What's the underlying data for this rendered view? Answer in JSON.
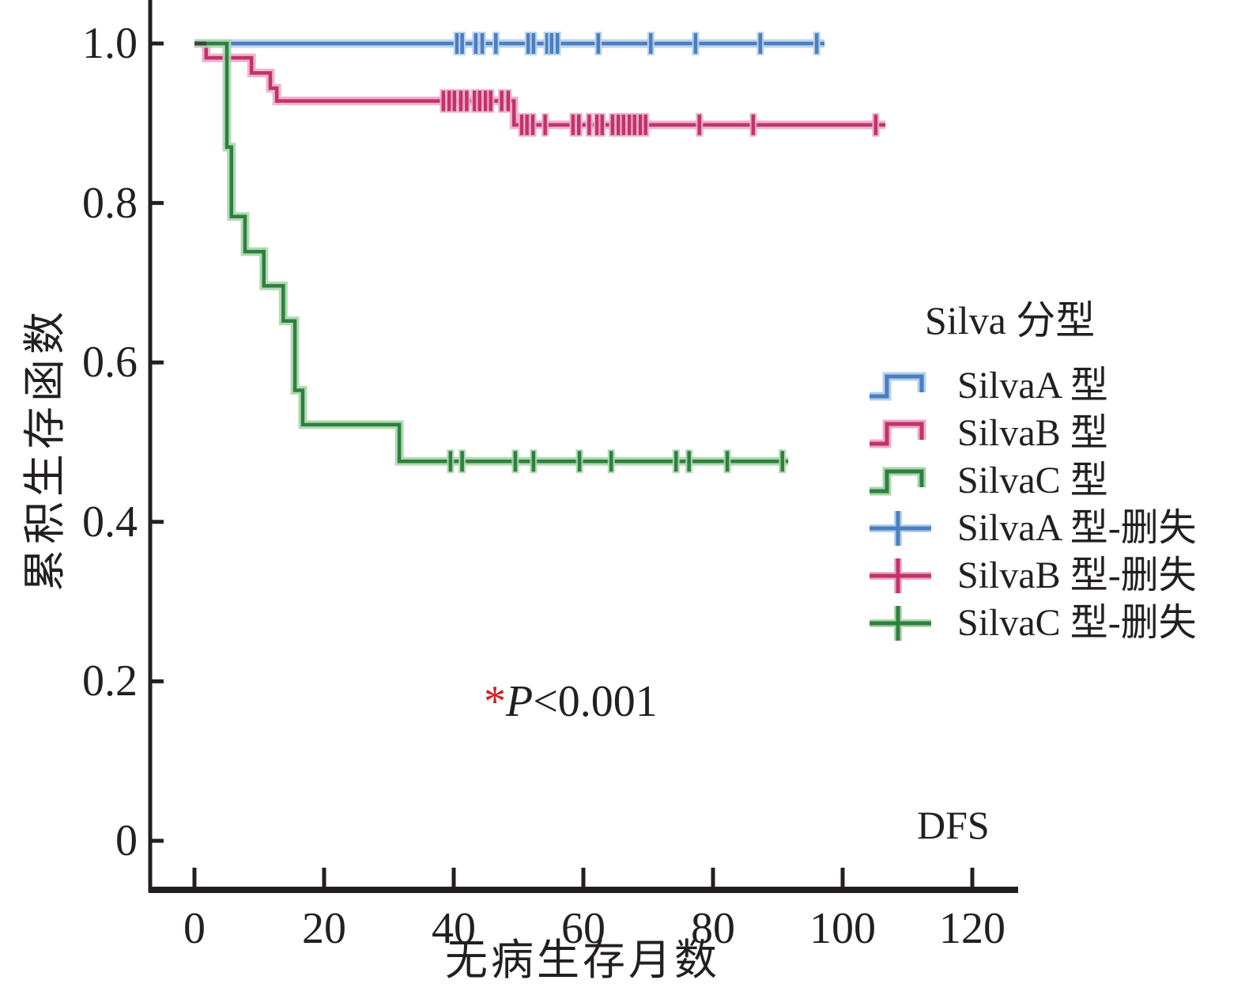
{
  "figure": {
    "background": "#ffffff"
  },
  "labels": {
    "y_axis": "累积生存函数",
    "x_axis": "无病生存月数",
    "dfs": "DFS",
    "p_star": "*",
    "p_var": "P",
    "p_rest": "<0.001"
  },
  "legend": {
    "title": "Silva 分型",
    "items": [
      {
        "label": "SilvaA 型",
        "marker": "step",
        "color": "#4a7ebf",
        "halo": "#b6d0ea"
      },
      {
        "label": "SilvaB 型",
        "marker": "step",
        "color": "#c2326b",
        "halo": "#ecaec9"
      },
      {
        "label": "SilvaC 型",
        "marker": "step",
        "color": "#2f8040",
        "halo": "#aad6ab"
      },
      {
        "label": "SilvaA 型-删失",
        "marker": "censor",
        "color": "#4a7ebf",
        "halo": "#b6d0ea"
      },
      {
        "label": "SilvaB 型-删失",
        "marker": "censor",
        "color": "#c2326b",
        "halo": "#ecaec9"
      },
      {
        "label": "SilvaC 型-删失",
        "marker": "censor",
        "color": "#2f8040",
        "halo": "#aad6ab"
      }
    ]
  },
  "chart_data": {
    "type": "line",
    "subtype": "kaplan-meier-step-survival",
    "title": "",
    "xlabel": "无病生存月数",
    "ylabel": "累积生存函数",
    "xlim": [
      0,
      127
    ],
    "ylim": [
      0,
      1.0
    ],
    "x_ticks": [
      0,
      20,
      40,
      60,
      80,
      100,
      120
    ],
    "y_ticks": [
      {
        "label": "1.0",
        "value": 1.0
      },
      {
        "label": "0.8",
        "value": 0.8
      },
      {
        "label": "0.6",
        "value": 0.6
      },
      {
        "label": "0.4",
        "value": 0.4
      },
      {
        "label": "0.2",
        "value": 0.2
      },
      {
        "label": "0",
        "value": 0.0
      }
    ],
    "grid": false,
    "legend_position": "right",
    "annotation": "*P<0.001",
    "bottom_right_label": "DFS",
    "axis_color": "#231f20",
    "start_overlap_color": "#3d4044",
    "start_overlap_x": [
      0,
      1.8
    ],
    "series": [
      {
        "name": "SilvaA 型",
        "color": "#4a7ebf",
        "halo": "#b6d0ea",
        "steps": [
          [
            0,
            1.0
          ],
          [
            97.2,
            1.0
          ]
        ],
        "censors": [
          [
            40.5,
            1.0
          ],
          [
            41.3,
            1.0
          ],
          [
            43.4,
            1.0
          ],
          [
            44.4,
            1.0
          ],
          [
            46.5,
            1.0
          ],
          [
            51.5,
            1.0
          ],
          [
            52.3,
            1.0
          ],
          [
            54.4,
            1.0
          ],
          [
            55.1,
            1.0
          ],
          [
            56.0,
            1.0
          ],
          [
            62.3,
            1.0
          ],
          [
            70.4,
            1.0
          ],
          [
            77.3,
            1.0
          ],
          [
            87.3,
            1.0
          ],
          [
            96.0,
            1.0
          ]
        ]
      },
      {
        "name": "SilvaB 型",
        "color": "#c2326b",
        "halo": "#ecaec9",
        "steps": [
          [
            0,
            1.0
          ],
          [
            1.8,
            1.0
          ],
          [
            1.8,
            0.982
          ],
          [
            8.8,
            0.982
          ],
          [
            8.8,
            0.963
          ],
          [
            11.7,
            0.963
          ],
          [
            11.7,
            0.944
          ],
          [
            12.7,
            0.944
          ],
          [
            12.7,
            0.928
          ],
          [
            49.3,
            0.928
          ],
          [
            49.3,
            0.898
          ],
          [
            106.6,
            0.898
          ]
        ],
        "censors": [
          [
            38.4,
            0.928
          ],
          [
            39.3,
            0.928
          ],
          [
            40.1,
            0.928
          ],
          [
            41.1,
            0.928
          ],
          [
            42.0,
            0.928
          ],
          [
            43.2,
            0.928
          ],
          [
            44.0,
            0.928
          ],
          [
            44.9,
            0.928
          ],
          [
            45.7,
            0.928
          ],
          [
            47.4,
            0.928
          ],
          [
            48.4,
            0.928
          ],
          [
            50.5,
            0.898
          ],
          [
            51.3,
            0.898
          ],
          [
            52.2,
            0.898
          ],
          [
            54.1,
            0.898
          ],
          [
            58.4,
            0.898
          ],
          [
            59.3,
            0.898
          ],
          [
            60.9,
            0.898
          ],
          [
            62.1,
            0.898
          ],
          [
            62.9,
            0.898
          ],
          [
            64.5,
            0.898
          ],
          [
            65.4,
            0.898
          ],
          [
            66.2,
            0.898
          ],
          [
            67.1,
            0.898
          ],
          [
            67.9,
            0.898
          ],
          [
            68.8,
            0.898
          ],
          [
            69.6,
            0.898
          ],
          [
            77.9,
            0.898
          ],
          [
            86.2,
            0.898
          ],
          [
            105.1,
            0.898
          ]
        ]
      },
      {
        "name": "SilvaC 型",
        "color": "#2f8040",
        "halo": "#aad6ab",
        "steps": [
          [
            0,
            1.0
          ],
          [
            5.0,
            1.0
          ],
          [
            5.0,
            0.87
          ],
          [
            5.7,
            0.87
          ],
          [
            5.7,
            0.783
          ],
          [
            7.8,
            0.783
          ],
          [
            7.8,
            0.739
          ],
          [
            10.7,
            0.739
          ],
          [
            10.7,
            0.696
          ],
          [
            13.7,
            0.696
          ],
          [
            13.7,
            0.652
          ],
          [
            15.5,
            0.652
          ],
          [
            15.5,
            0.565
          ],
          [
            16.7,
            0.565
          ],
          [
            16.7,
            0.522
          ],
          [
            31.6,
            0.522
          ],
          [
            31.6,
            0.476
          ],
          [
            91.6,
            0.476
          ]
        ],
        "censors": [
          [
            39.5,
            0.476
          ],
          [
            41.3,
            0.476
          ],
          [
            49.5,
            0.476
          ],
          [
            52.3,
            0.476
          ],
          [
            59.4,
            0.476
          ],
          [
            64.3,
            0.476
          ],
          [
            74.3,
            0.476
          ],
          [
            76.3,
            0.476
          ],
          [
            82.2,
            0.476
          ],
          [
            90.7,
            0.476
          ]
        ]
      }
    ]
  }
}
